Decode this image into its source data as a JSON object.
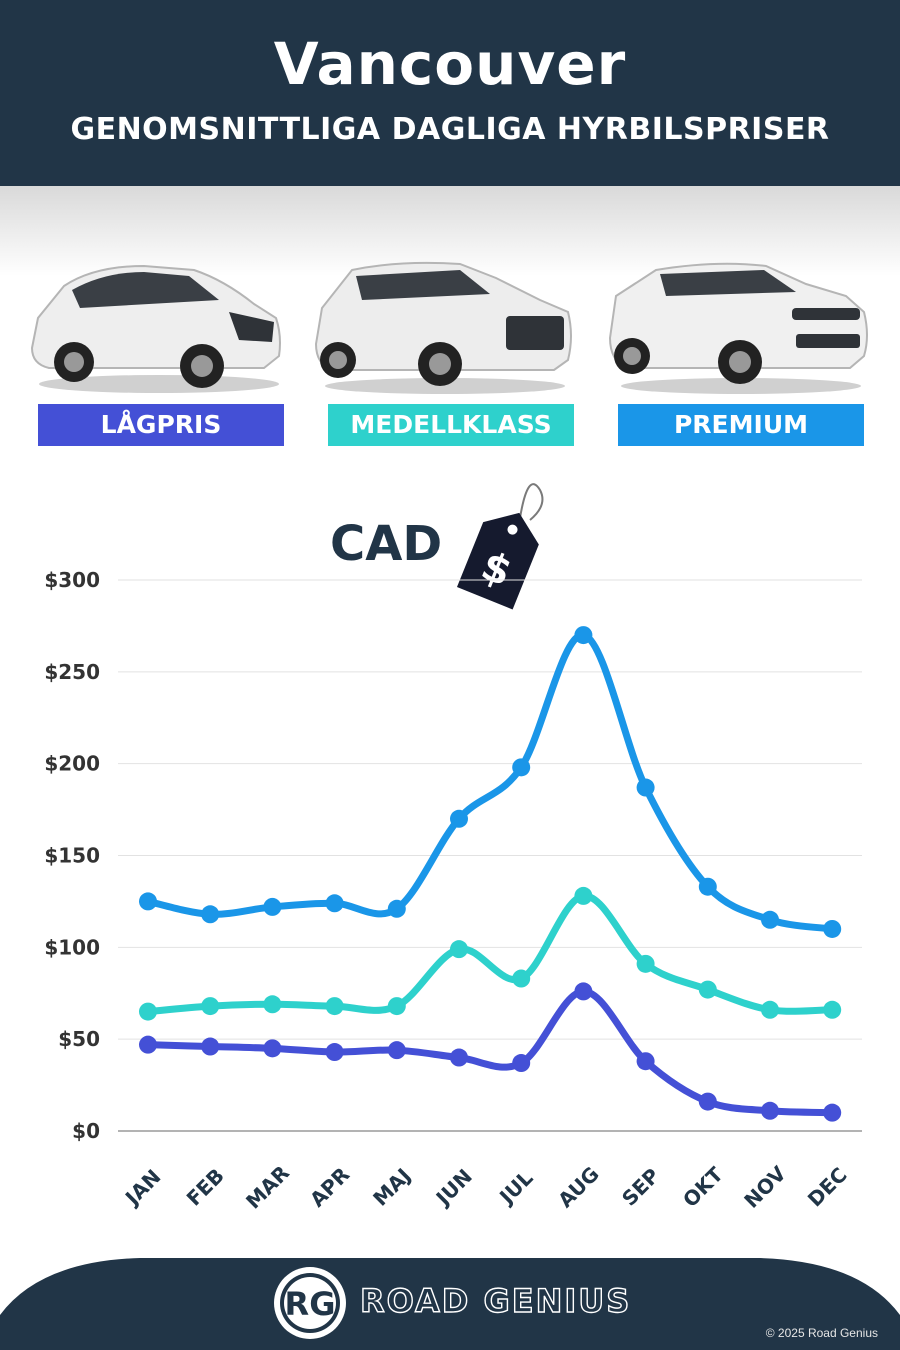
{
  "header": {
    "city": "Vancouver",
    "subtitle": "GENOMSNITTLIGA DAGLIGA HYRBILSPRISER"
  },
  "categories": [
    {
      "label": "LÅGPRIS",
      "color": "#4450d6"
    },
    {
      "label": "MEDELLKLASS",
      "color": "#2ed1cc"
    },
    {
      "label": "PREMIUM",
      "color": "#1a96e8"
    }
  ],
  "currency": {
    "label": "CAD",
    "symbol": "$"
  },
  "chart_data": {
    "type": "line",
    "title": "",
    "xlabel": "",
    "ylabel": "",
    "ylim": [
      0,
      300
    ],
    "yticks": [
      0,
      50,
      100,
      150,
      200,
      250,
      300
    ],
    "ytick_labels": [
      "$0",
      "$50",
      "$100",
      "$150",
      "$200",
      "$250",
      "$300"
    ],
    "categories": [
      "JAN",
      "FEB",
      "MAR",
      "APR",
      "MAJ",
      "JUN",
      "JUL",
      "AUG",
      "SEP",
      "OKT",
      "NOV",
      "DEC"
    ],
    "grid": true,
    "series": [
      {
        "name": "PREMIUM",
        "color": "#1a96e8",
        "values": [
          125,
          118,
          122,
          124,
          121,
          170,
          198,
          270,
          187,
          133,
          115,
          110
        ]
      },
      {
        "name": "MEDELLKLASS",
        "color": "#2ed1cc",
        "values": [
          65,
          68,
          69,
          68,
          68,
          99,
          83,
          128,
          91,
          77,
          66,
          66
        ]
      },
      {
        "name": "LÅGPRIS",
        "color": "#4450d6",
        "values": [
          47,
          46,
          45,
          43,
          44,
          40,
          37,
          76,
          38,
          16,
          11,
          10
        ]
      }
    ]
  },
  "footer": {
    "logo_initials": "RG",
    "brand": "ROAD GENIUS",
    "copyright": "© 2025 Road Genius"
  }
}
